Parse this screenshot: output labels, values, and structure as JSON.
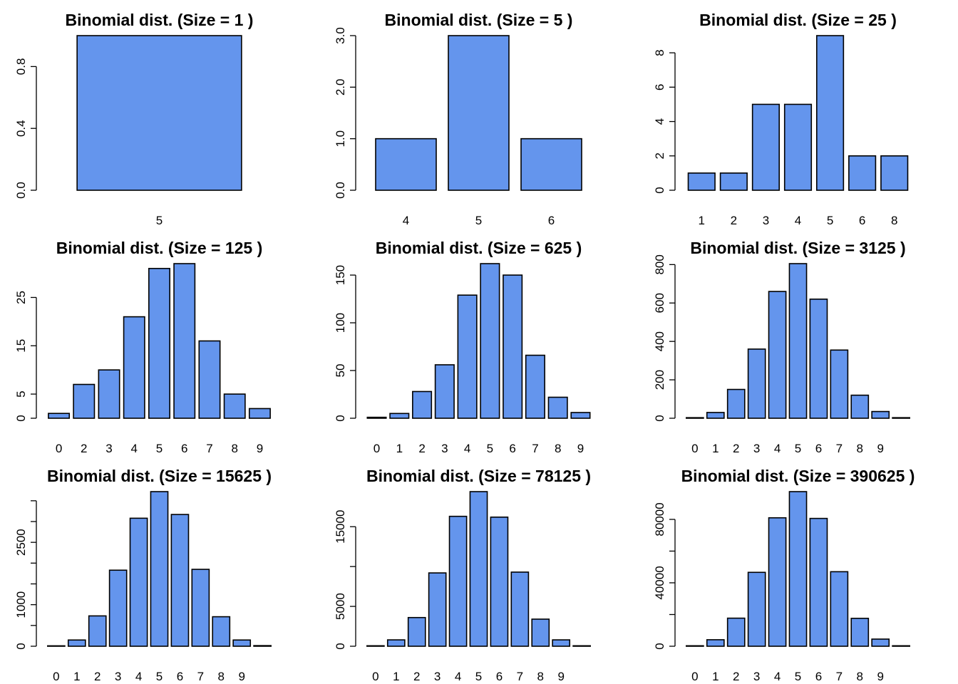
{
  "colors": {
    "bar_fill": "#6495ED",
    "bar_stroke": "#000000"
  },
  "chart_data": [
    {
      "type": "bar",
      "title": "Binomial dist. (Size = 1 )",
      "categories": [
        "5"
      ],
      "values": [
        1
      ],
      "ylim": [
        0,
        1
      ],
      "yticks": [
        0,
        0.4,
        0.8
      ],
      "ytick_labels": [
        "0.0",
        "0.4",
        "0.8"
      ]
    },
    {
      "type": "bar",
      "title": "Binomial dist. (Size = 5 )",
      "categories": [
        "4",
        "5",
        "6"
      ],
      "values": [
        1,
        3,
        1
      ],
      "ylim": [
        0,
        3
      ],
      "yticks": [
        0,
        1,
        2,
        3
      ],
      "ytick_labels": [
        "0.0",
        "1.0",
        "2.0",
        "3.0"
      ]
    },
    {
      "type": "bar",
      "title": "Binomial dist. (Size = 25 )",
      "categories": [
        "1",
        "2",
        "3",
        "4",
        "5",
        "6",
        "8"
      ],
      "values": [
        1,
        1,
        5,
        5,
        9,
        2,
        2
      ],
      "ylim": [
        0,
        9
      ],
      "yticks": [
        0,
        2,
        4,
        6,
        8
      ],
      "ytick_labels": [
        "0",
        "2",
        "4",
        "6",
        "8"
      ]
    },
    {
      "type": "bar",
      "title": "Binomial dist. (Size = 125 )",
      "categories": [
        "0",
        "2",
        "3",
        "4",
        "5",
        "6",
        "7",
        "8",
        "9"
      ],
      "values": [
        1,
        7,
        10,
        21,
        31,
        32,
        16,
        5,
        2
      ],
      "ylim": [
        0,
        32
      ],
      "yticks": [
        0,
        5,
        15,
        25
      ],
      "ytick_labels": [
        "0",
        "5",
        "15",
        "25"
      ]
    },
    {
      "type": "bar",
      "title": "Binomial dist. (Size = 625 )",
      "categories": [
        "0",
        "1",
        "2",
        "3",
        "4",
        "5",
        "6",
        "7",
        "8",
        "9"
      ],
      "values": [
        1,
        5,
        28,
        56,
        129,
        162,
        150,
        66,
        22,
        6
      ],
      "ylim": [
        0,
        162
      ],
      "yticks": [
        0,
        50,
        100,
        150
      ],
      "ytick_labels": [
        "0",
        "50",
        "100",
        "150"
      ]
    },
    {
      "type": "bar",
      "title": "Binomial dist. (Size = 3125 )",
      "categories": [
        "0",
        "1",
        "2",
        "3",
        "4",
        "5",
        "6",
        "7",
        "8",
        "9",
        ""
      ],
      "values": [
        3,
        30,
        150,
        360,
        660,
        805,
        620,
        355,
        120,
        35,
        3
      ],
      "ylim": [
        0,
        805
      ],
      "yticks": [
        0,
        200,
        400,
        600,
        800
      ],
      "ytick_labels": [
        "0",
        "200",
        "400",
        "600",
        "800"
      ]
    },
    {
      "type": "bar",
      "title": "Binomial dist. (Size = 15625 )",
      "categories": [
        "0",
        "1",
        "2",
        "3",
        "4",
        "5",
        "6",
        "7",
        "8",
        "9",
        ""
      ],
      "values": [
        10,
        150,
        730,
        1830,
        3080,
        3720,
        3170,
        1850,
        710,
        150,
        15
      ],
      "ylim": [
        0,
        3720
      ],
      "yticks": [
        0,
        1000,
        2500
      ],
      "minor_yticks": [
        500,
        1500,
        2000,
        3000,
        3500
      ],
      "ytick_labels": [
        "0",
        "1000",
        "2500"
      ]
    },
    {
      "type": "bar",
      "title": "Binomial dist. (Size = 78125 )",
      "categories": [
        "0",
        "1",
        "2",
        "3",
        "4",
        "5",
        "6",
        "7",
        "8",
        "9",
        ""
      ],
      "values": [
        60,
        800,
        3600,
        9200,
        16300,
        19400,
        16200,
        9300,
        3400,
        800,
        60
      ],
      "ylim": [
        0,
        19400
      ],
      "yticks": [
        0,
        5000,
        15000
      ],
      "minor_yticks": [
        10000
      ],
      "ytick_labels": [
        "0",
        "5000",
        "15000"
      ]
    },
    {
      "type": "bar",
      "title": "Binomial dist. (Size = 390625 )",
      "categories": [
        "0",
        "1",
        "2",
        "3",
        "4",
        "5",
        "6",
        "7",
        "8",
        "9",
        ""
      ],
      "values": [
        300,
        4100,
        17700,
        46600,
        81000,
        97500,
        80600,
        47000,
        17600,
        4500,
        300
      ],
      "ylim": [
        0,
        97500
      ],
      "yticks": [
        0,
        40000,
        80000
      ],
      "minor_yticks": [
        20000,
        60000
      ],
      "ytick_labels": [
        "0",
        "40000",
        "80000"
      ]
    }
  ]
}
